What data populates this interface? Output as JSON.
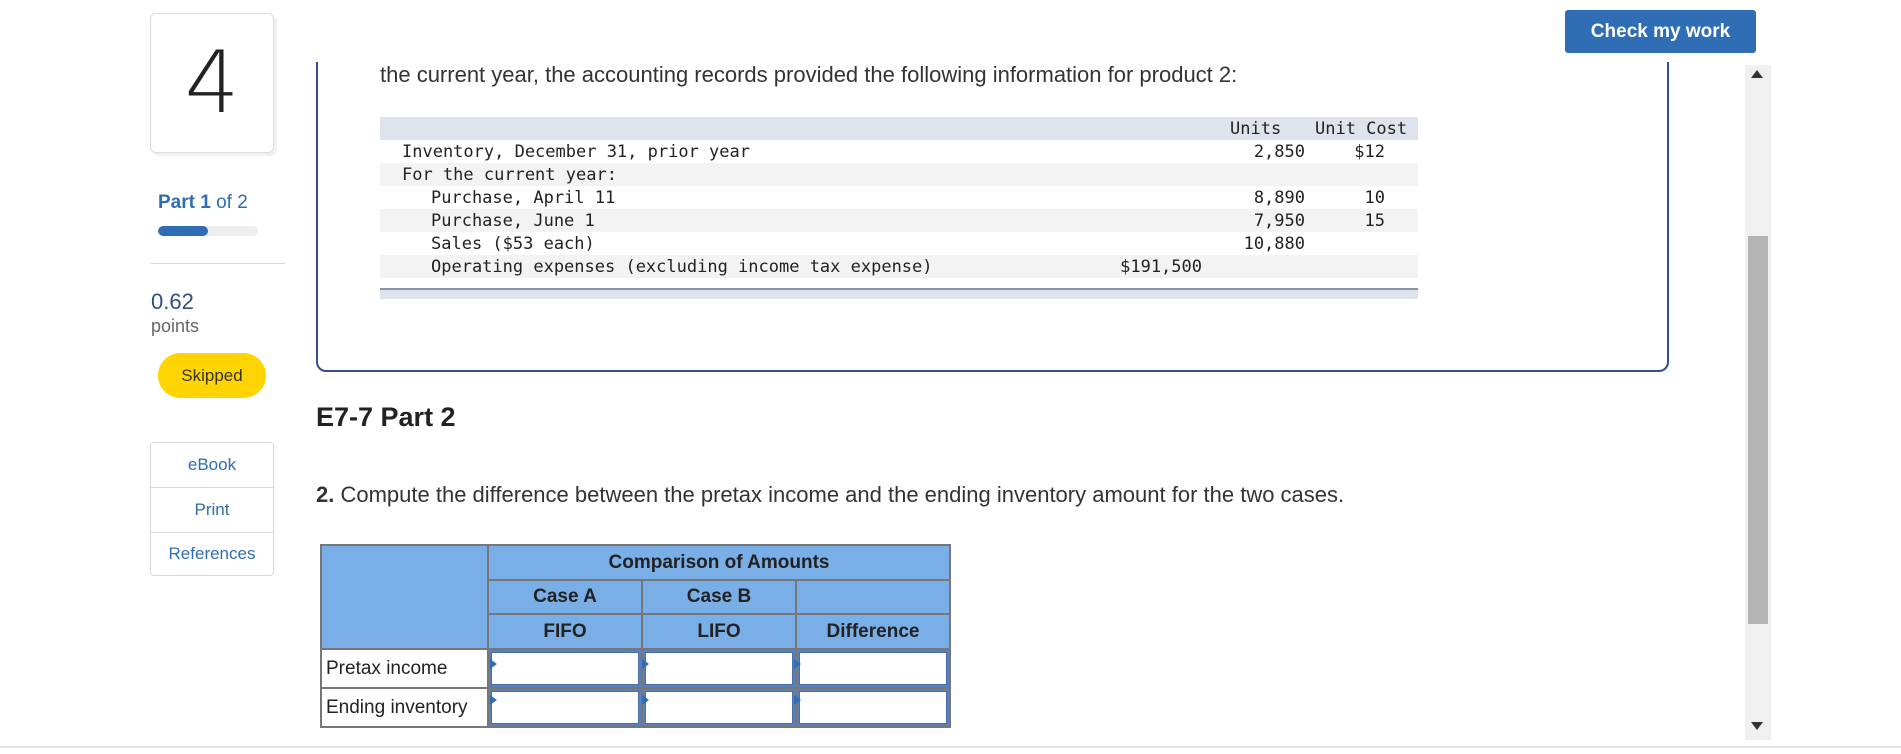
{
  "sidebar": {
    "question_number": "4",
    "part_prefix": "Part",
    "part_current": "1",
    "part_of": "of 2",
    "progress_fraction": 0.5,
    "points_value": "0.62",
    "points_label": "points",
    "status_badge": "Skipped",
    "resources": [
      "eBook",
      "Print",
      "References"
    ]
  },
  "header": {
    "check_button": "Check my work"
  },
  "problem": {
    "intro": "the current year, the accounting records provided the following information for product 2:",
    "table": {
      "headers": {
        "units": "Units",
        "unit_cost": "Unit Cost"
      },
      "rows": [
        {
          "label": "Inventory, December 31, prior year",
          "units": "2,850",
          "unit_cost": "$12"
        },
        {
          "label": "For the current year:",
          "units": "",
          "unit_cost": ""
        },
        {
          "label": "Purchase, April 11",
          "units": "8,890",
          "unit_cost": "10"
        },
        {
          "label": "Purchase, June 1",
          "units": "7,950",
          "unit_cost": "15"
        },
        {
          "label": "Sales ($53 each)",
          "units": "10,880",
          "unit_cost": ""
        },
        {
          "label": "Operating expenses (excluding income tax expense)",
          "amount": "$191,500"
        }
      ]
    }
  },
  "part": {
    "heading": "E7-7 Part 2",
    "question_number": "2.",
    "question_text": "Compute the difference between the pretax income and the ending inventory amount for the two cases."
  },
  "answer_table": {
    "title": "Comparison of Amounts",
    "case_a": "Case A",
    "case_b": "Case B",
    "fifo": "FIFO",
    "lifo": "LIFO",
    "difference": "Difference",
    "rows": [
      {
        "label": "Pretax income",
        "fifo": "",
        "lifo": "",
        "difference": ""
      },
      {
        "label": "Ending inventory",
        "fifo": "",
        "lifo": "",
        "difference": ""
      }
    ]
  },
  "colors": {
    "accent": "#2f6db5",
    "badge": "#ffd400",
    "table_header": "#7aaee6"
  }
}
